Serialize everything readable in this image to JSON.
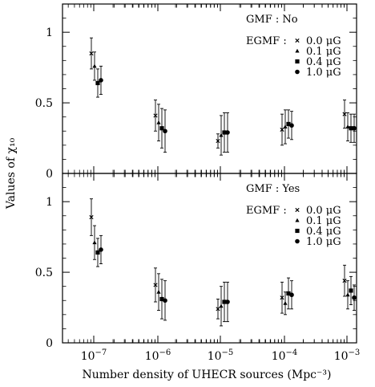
{
  "chart_data": {
    "type": "scatter",
    "xlabel": "Number density of UHECR sources (Mpc⁻³)",
    "ylabel": "Values of χ₁₀",
    "x_scale": "log",
    "x_categories": [
      1e-07,
      1e-06,
      1e-05,
      0.0001,
      0.001
    ],
    "x_tick_labels": [
      {
        "base": "10",
        "exp": "−7"
      },
      {
        "base": "10",
        "exp": "−6"
      },
      {
        "base": "10",
        "exp": "−5"
      },
      {
        "base": "10",
        "exp": "−4"
      },
      {
        "base": "10",
        "exp": "−3"
      }
    ],
    "ylim": [
      0,
      1.2
    ],
    "y_ticks": [
      0,
      0.5,
      1
    ],
    "y_tick_labels": [
      "0",
      "0.5",
      "1"
    ],
    "grid": false,
    "legend_placement": "top-right",
    "panels": [
      {
        "legend_title": "GMF : No",
        "legend_prefix": "EGMF :",
        "series": [
          {
            "name": "0.0 μG",
            "marker": "cross",
            "y": [
              0.85,
              0.41,
              0.23,
              0.31,
              0.42
            ],
            "err": [
              0.11,
              0.11,
              0.05,
              0.11,
              0.1
            ]
          },
          {
            "name": "0.1 μG",
            "marker": "triangle",
            "y": [
              0.76,
              0.36,
              0.27,
              0.33,
              0.33
            ],
            "err": [
              0.1,
              0.13,
              0.14,
              0.12,
              0.1
            ]
          },
          {
            "name": "0.4 μG",
            "marker": "square",
            "y": [
              0.64,
              0.32,
              0.29,
              0.35,
              0.32
            ],
            "err": [
              0.1,
              0.14,
              0.14,
              0.1,
              0.1
            ]
          },
          {
            "name": "1.0 μG",
            "marker": "circle",
            "y": [
              0.66,
              0.3,
              0.29,
              0.34,
              0.32
            ],
            "err": [
              0.1,
              0.15,
              0.14,
              0.1,
              0.1
            ]
          }
        ]
      },
      {
        "legend_title": "GMF : Yes",
        "legend_prefix": "EGMF :",
        "series": [
          {
            "name": "0.0 μG",
            "marker": "cross",
            "y": [
              0.89,
              0.41,
              0.24,
              0.32,
              0.44
            ],
            "err": [
              0.13,
              0.12,
              0.07,
              0.11,
              0.11
            ]
          },
          {
            "name": "0.1 μG",
            "marker": "triangle",
            "y": [
              0.71,
              0.36,
              0.26,
              0.28,
              0.34
            ],
            "err": [
              0.12,
              0.13,
              0.14,
              0.08,
              0.1
            ]
          },
          {
            "name": "0.4 μG",
            "marker": "square",
            "y": [
              0.64,
              0.31,
              0.29,
              0.35,
              0.37
            ],
            "err": [
              0.1,
              0.14,
              0.14,
              0.11,
              0.1
            ]
          },
          {
            "name": "1.0 μG",
            "marker": "circle",
            "y": [
              0.66,
              0.3,
              0.29,
              0.34,
              0.32
            ],
            "err": [
              0.1,
              0.14,
              0.14,
              0.1,
              0.09
            ]
          }
        ]
      }
    ]
  }
}
